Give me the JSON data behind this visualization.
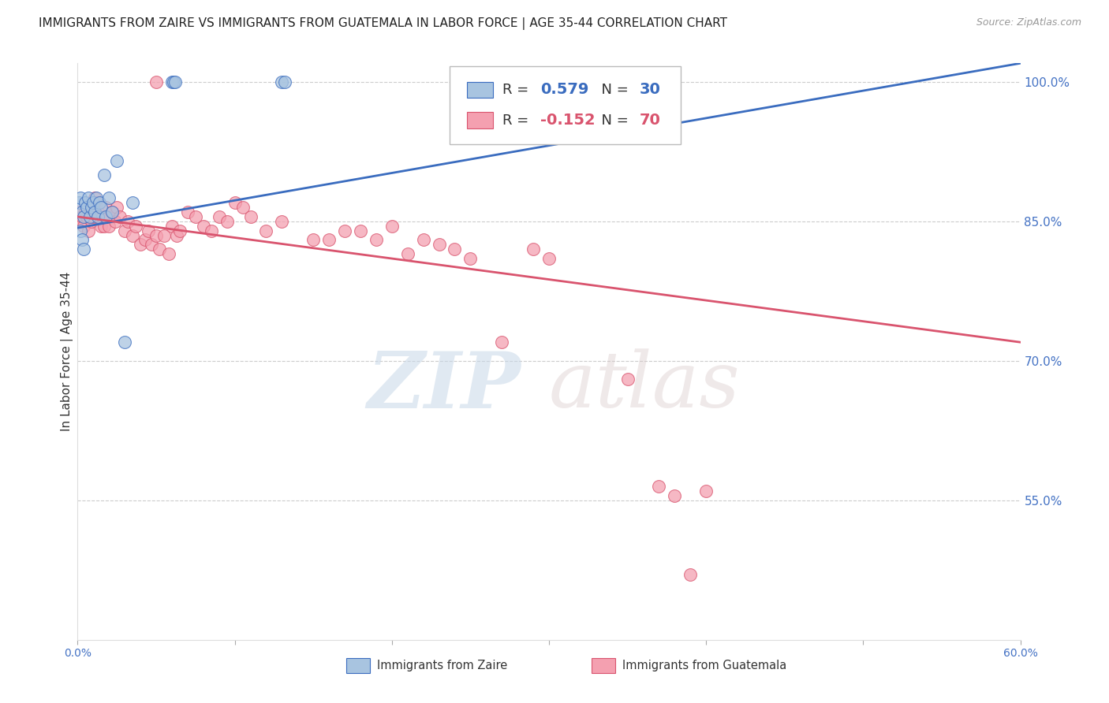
{
  "title": "IMMIGRANTS FROM ZAIRE VS IMMIGRANTS FROM GUATEMALA IN LABOR FORCE | AGE 35-44 CORRELATION CHART",
  "source": "Source: ZipAtlas.com",
  "ylabel": "In Labor Force | Age 35-44",
  "xlim": [
    0.0,
    0.6
  ],
  "ylim": [
    0.4,
    1.02
  ],
  "yticks_right": [
    0.55,
    0.7,
    0.85,
    1.0
  ],
  "ytick_labels_right": [
    "55.0%",
    "70.0%",
    "85.0%",
    "100.0%"
  ],
  "xticks": [
    0.0,
    0.1,
    0.2,
    0.3,
    0.4,
    0.5,
    0.6
  ],
  "xtick_labels": [
    "0.0%",
    "",
    "",
    "",
    "",
    "",
    "60.0%"
  ],
  "legend_entries": [
    {
      "label": "Immigrants from Zaire",
      "color": "#a8c4e0",
      "R": 0.579,
      "N": 30
    },
    {
      "label": "Immigrants from Guatemala",
      "color": "#f4a0b0",
      "R": -0.152,
      "N": 70
    }
  ],
  "zaire_scatter": [
    [
      0.001,
      0.87
    ],
    [
      0.002,
      0.875
    ],
    [
      0.003,
      0.86
    ],
    [
      0.004,
      0.855
    ],
    [
      0.005,
      0.87
    ],
    [
      0.006,
      0.865
    ],
    [
      0.007,
      0.875
    ],
    [
      0.008,
      0.855
    ],
    [
      0.009,
      0.865
    ],
    [
      0.01,
      0.87
    ],
    [
      0.011,
      0.86
    ],
    [
      0.012,
      0.875
    ],
    [
      0.013,
      0.855
    ],
    [
      0.014,
      0.87
    ],
    [
      0.015,
      0.865
    ],
    [
      0.017,
      0.9
    ],
    [
      0.02,
      0.875
    ],
    [
      0.025,
      0.915
    ],
    [
      0.03,
      0.72
    ],
    [
      0.035,
      0.87
    ],
    [
      0.06,
      1.0
    ],
    [
      0.061,
      1.0
    ],
    [
      0.062,
      1.0
    ],
    [
      0.13,
      1.0
    ],
    [
      0.132,
      1.0
    ],
    [
      0.002,
      0.84
    ],
    [
      0.003,
      0.83
    ],
    [
      0.004,
      0.82
    ],
    [
      0.018,
      0.855
    ],
    [
      0.022,
      0.86
    ]
  ],
  "guatemala_scatter": [
    [
      0.001,
      0.86
    ],
    [
      0.002,
      0.85
    ],
    [
      0.003,
      0.855
    ],
    [
      0.004,
      0.845
    ],
    [
      0.005,
      0.86
    ],
    [
      0.006,
      0.855
    ],
    [
      0.007,
      0.84
    ],
    [
      0.008,
      0.86
    ],
    [
      0.009,
      0.85
    ],
    [
      0.01,
      0.855
    ],
    [
      0.011,
      0.875
    ],
    [
      0.012,
      0.87
    ],
    [
      0.013,
      0.86
    ],
    [
      0.014,
      0.855
    ],
    [
      0.015,
      0.845
    ],
    [
      0.016,
      0.855
    ],
    [
      0.017,
      0.845
    ],
    [
      0.018,
      0.865
    ],
    [
      0.019,
      0.855
    ],
    [
      0.02,
      0.845
    ],
    [
      0.022,
      0.86
    ],
    [
      0.024,
      0.85
    ],
    [
      0.025,
      0.865
    ],
    [
      0.027,
      0.855
    ],
    [
      0.03,
      0.84
    ],
    [
      0.032,
      0.85
    ],
    [
      0.035,
      0.835
    ],
    [
      0.037,
      0.845
    ],
    [
      0.04,
      0.825
    ],
    [
      0.043,
      0.83
    ],
    [
      0.045,
      0.84
    ],
    [
      0.047,
      0.825
    ],
    [
      0.05,
      0.835
    ],
    [
      0.052,
      0.82
    ],
    [
      0.055,
      0.835
    ],
    [
      0.058,
      0.815
    ],
    [
      0.06,
      0.845
    ],
    [
      0.063,
      0.835
    ],
    [
      0.065,
      0.84
    ],
    [
      0.07,
      0.86
    ],
    [
      0.075,
      0.855
    ],
    [
      0.08,
      0.845
    ],
    [
      0.085,
      0.84
    ],
    [
      0.09,
      0.855
    ],
    [
      0.095,
      0.85
    ],
    [
      0.1,
      0.87
    ],
    [
      0.105,
      0.865
    ],
    [
      0.11,
      0.855
    ],
    [
      0.12,
      0.84
    ],
    [
      0.13,
      0.85
    ],
    [
      0.15,
      0.83
    ],
    [
      0.16,
      0.83
    ],
    [
      0.17,
      0.84
    ],
    [
      0.18,
      0.84
    ],
    [
      0.19,
      0.83
    ],
    [
      0.2,
      0.845
    ],
    [
      0.05,
      1.0
    ],
    [
      0.21,
      0.815
    ],
    [
      0.22,
      0.83
    ],
    [
      0.23,
      0.825
    ],
    [
      0.24,
      0.82
    ],
    [
      0.25,
      0.81
    ],
    [
      0.27,
      0.72
    ],
    [
      0.29,
      0.82
    ],
    [
      0.3,
      0.81
    ],
    [
      0.35,
      0.68
    ],
    [
      0.37,
      0.565
    ],
    [
      0.38,
      0.555
    ],
    [
      0.39,
      0.47
    ],
    [
      0.4,
      0.56
    ]
  ],
  "zaire_line_color": "#3a6cbf",
  "guatemala_line_color": "#d9546e",
  "scatter_zaire_color": "#a8c4e0",
  "scatter_guatemala_color": "#f4a0b0",
  "watermark_zip": "ZIP",
  "watermark_atlas": "atlas",
  "background_color": "#ffffff",
  "grid_color": "#cccccc",
  "title_fontsize": 11,
  "axis_label_color": "#333333",
  "right_axis_label_color": "#4472c4",
  "bottom_axis_label_color": "#4472c4"
}
